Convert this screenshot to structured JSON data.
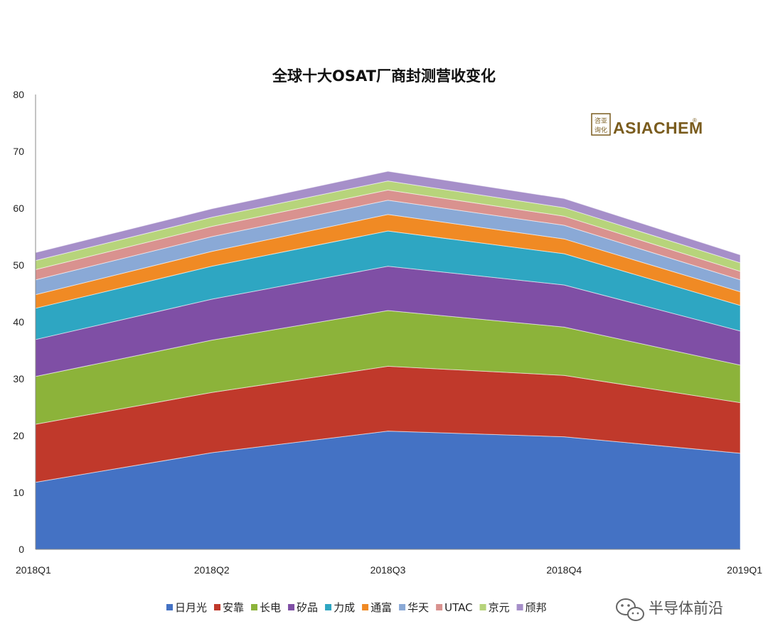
{
  "chart_data": {
    "type": "area",
    "stacked": true,
    "title": "全球十大OSAT厂商封测营收变化",
    "xlabel": "",
    "ylabel": "",
    "categories": [
      "2018Q1",
      "2018Q2",
      "2018Q3",
      "2018Q4",
      "2019Q1"
    ],
    "ylim": [
      0,
      80
    ],
    "yticks": [
      0,
      10,
      20,
      30,
      40,
      50,
      60,
      70,
      80
    ],
    "grid": false,
    "legend_position": "bottom",
    "series": [
      {
        "name": "日月光",
        "color": "#4472c4",
        "values": [
          11.8,
          17.0,
          20.8,
          19.8,
          16.9
        ]
      },
      {
        "name": "安靠",
        "color": "#c0392b",
        "values": [
          10.2,
          10.6,
          11.4,
          10.8,
          8.9
        ]
      },
      {
        "name": "长电",
        "color": "#8cb33a",
        "values": [
          8.4,
          9.2,
          9.8,
          8.5,
          6.6
        ]
      },
      {
        "name": "矽品",
        "color": "#7f4fa5",
        "values": [
          6.5,
          7.2,
          7.8,
          7.4,
          6.0
        ]
      },
      {
        "name": "力成",
        "color": "#2ea6c2",
        "values": [
          5.5,
          5.8,
          6.2,
          5.5,
          4.5
        ]
      },
      {
        "name": "通富",
        "color": "#f08a24",
        "values": [
          2.4,
          2.6,
          2.9,
          2.6,
          2.4
        ]
      },
      {
        "name": "华天",
        "color": "#8aa9d6",
        "values": [
          2.6,
          2.6,
          2.5,
          2.4,
          2.1
        ]
      },
      {
        "name": "UTAC",
        "color": "#d9928f",
        "values": [
          1.8,
          1.8,
          1.8,
          1.6,
          1.5
        ]
      },
      {
        "name": "京元",
        "color": "#b7d47b",
        "values": [
          1.6,
          1.6,
          1.6,
          1.5,
          1.5
        ]
      },
      {
        "name": "颀邦",
        "color": "#a68fc9",
        "values": [
          1.4,
          1.5,
          1.7,
          1.6,
          1.4
        ]
      }
    ]
  },
  "logo": {
    "text": "ASIACHEM",
    "seal_chars": "咨询亚化"
  },
  "watermark": {
    "text": "半导体前沿",
    "icon": "wechat-icon"
  }
}
